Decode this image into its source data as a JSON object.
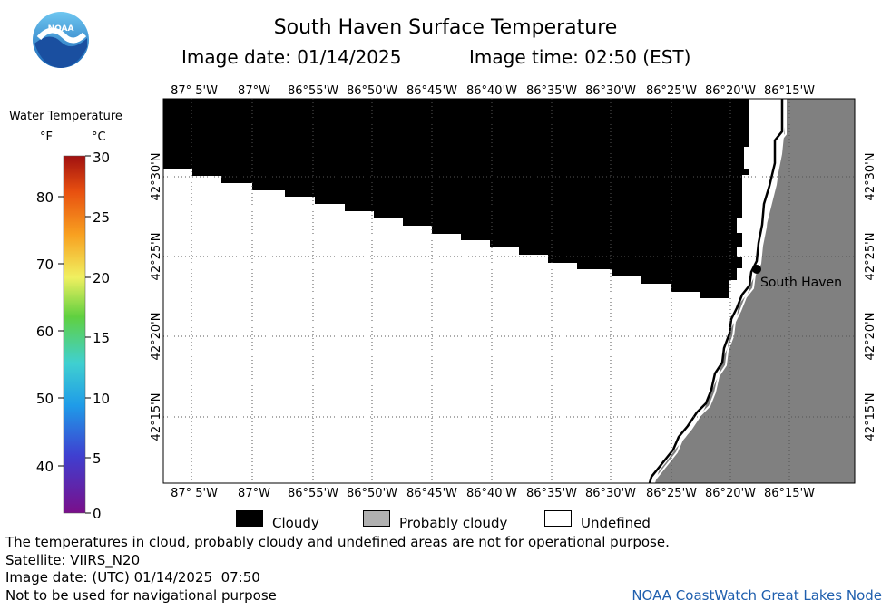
{
  "header": {
    "title": "South Haven Surface Temperature",
    "image_date": "Image date: 01/14/2025",
    "image_time": "Image time: 02:50 (EST)"
  },
  "logo": {
    "text": "NOAA"
  },
  "colorbar": {
    "title": "Water Temperature",
    "unit_f": "°F",
    "unit_c": "°C",
    "f_ticks": [
      "40",
      "50",
      "60",
      "70",
      "80"
    ],
    "c_ticks": [
      "0",
      "5",
      "10",
      "15",
      "20",
      "25",
      "30"
    ]
  },
  "map": {
    "lon_labels": [
      "87° 5'W",
      "87°W",
      "86°55'W",
      "86°50'W",
      "86°45'W",
      "86°40'W",
      "86°35'W",
      "86°30'W",
      "86°25'W",
      "86°20'W",
      "86°15'W"
    ],
    "lat_labels": [
      "42°30'N",
      "42°25'N",
      "42°20'N",
      "42°15'N"
    ],
    "city_label": "South Haven"
  },
  "legend": {
    "cloudy": "Cloudy",
    "probably_cloudy": "Probably cloudy",
    "undefined": "Undefined"
  },
  "footer": {
    "disclaimer": "The temperatures in cloud, probably cloudy and undefined areas are not for operational purpose.",
    "satellite": "Satellite: VIIRS_N20",
    "utc_date": "Image date: (UTC) 01/14/2025  07:50",
    "nav_warning": "Not to be used for navigational purpose",
    "credit": "NOAA CoastWatch Great Lakes Node"
  },
  "colors": {
    "cloud": "#000000",
    "land": "#808080",
    "undefined": "#ffffff",
    "credit": "#1f5fae"
  }
}
